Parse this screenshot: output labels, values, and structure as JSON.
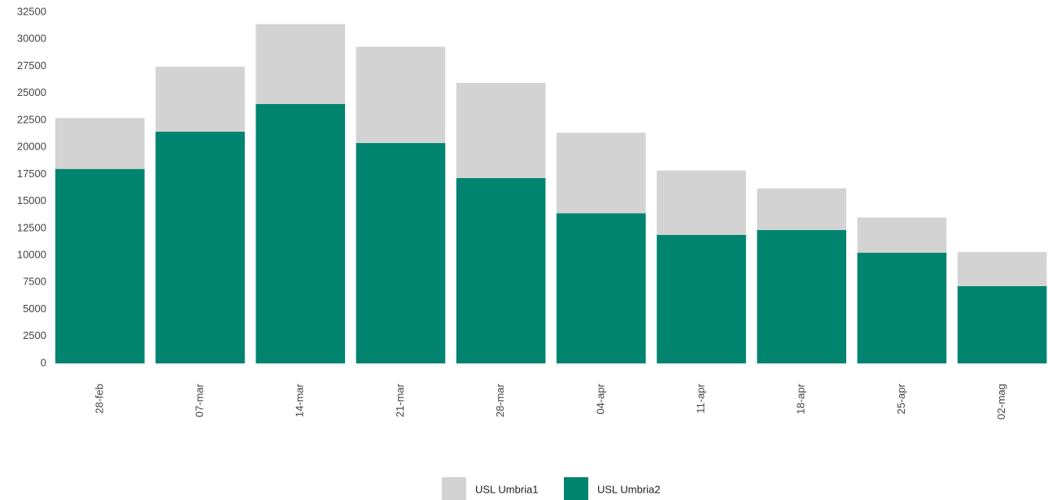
{
  "chart_data": {
    "type": "stacked_bar",
    "categories": [
      "28-feb",
      "07-mar",
      "14-mar",
      "21-mar",
      "28-mar",
      "04-apr",
      "11-apr",
      "18-apr",
      "25-apr",
      "02-mag"
    ],
    "series": [
      {
        "name": "USL Umbria1",
        "color": "#d3d3d3",
        "values": [
          4700,
          6000,
          7400,
          8900,
          8800,
          7450,
          5950,
          3850,
          3250,
          3150
        ]
      },
      {
        "name": "USL Umbria2",
        "color": "#008470",
        "values": [
          18000,
          21450,
          24000,
          20400,
          17150,
          13900,
          11900,
          12350,
          10250,
          7150
        ]
      }
    ],
    "ylim": [
      0,
      32500
    ],
    "yticks": [
      0,
      2500,
      5000,
      7500,
      10000,
      12500,
      15000,
      17500,
      20000,
      22500,
      25000,
      27500,
      30000,
      32500
    ],
    "grid": false
  }
}
